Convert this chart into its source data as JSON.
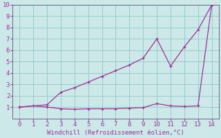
{
  "xlabel": "Windchill (Refroidissement éolien,°C)",
  "xlim": [
    -0.5,
    14.5
  ],
  "ylim": [
    0,
    10
  ],
  "xticks": [
    0,
    1,
    2,
    3,
    4,
    5,
    6,
    7,
    8,
    9,
    10,
    11,
    12,
    13,
    14
  ],
  "yticks": [
    1,
    2,
    3,
    4,
    5,
    6,
    7,
    8,
    9,
    10
  ],
  "bg_color": "#cce8e8",
  "grid_color": "#99cccc",
  "line_color": "#993399",
  "upper_x": [
    0,
    2,
    3,
    4,
    5,
    6,
    7,
    8,
    9,
    10,
    11,
    12,
    13,
    14
  ],
  "upper_y": [
    1.0,
    1.2,
    2.3,
    2.7,
    3.2,
    3.7,
    4.2,
    4.7,
    5.3,
    7.0,
    4.6,
    6.3,
    7.8,
    10.0
  ],
  "lower_x": [
    0,
    1,
    2,
    3,
    4,
    5,
    6,
    7,
    8,
    9,
    10,
    11,
    12,
    13,
    14
  ],
  "lower_y": [
    1.0,
    1.1,
    1.0,
    0.85,
    0.8,
    0.85,
    0.85,
    0.85,
    0.9,
    0.95,
    1.3,
    1.1,
    1.05,
    1.1,
    10.0
  ]
}
